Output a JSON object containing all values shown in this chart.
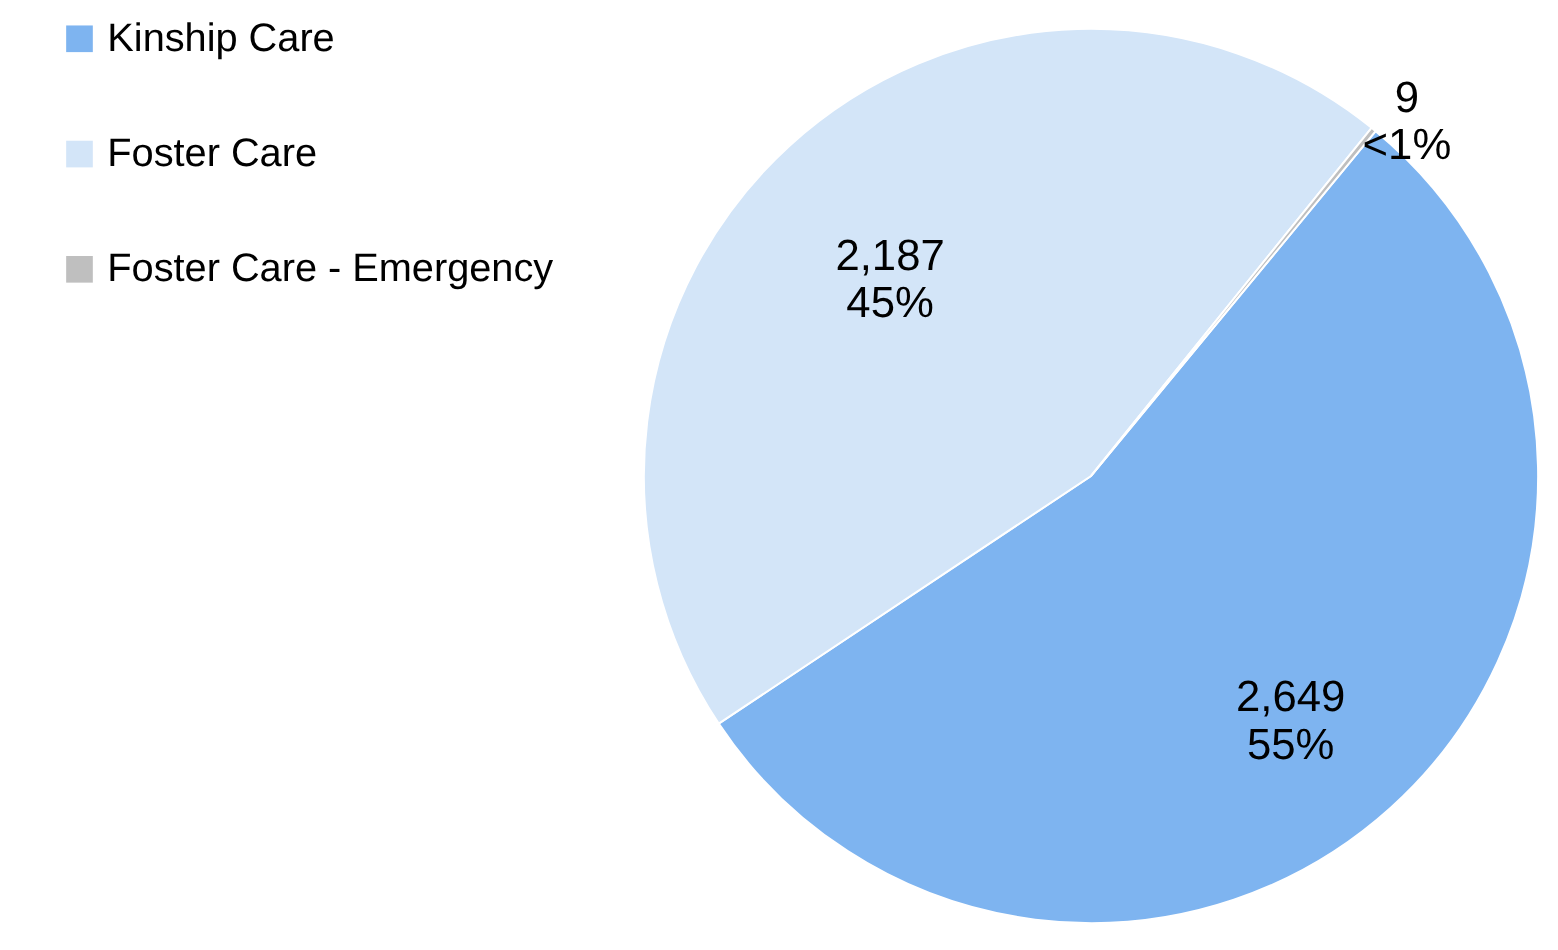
{
  "chart_data": {
    "type": "pie",
    "categories": [
      "Kinship Care",
      "Foster Care",
      "Foster Care - Emergency"
    ],
    "values": [
      2649,
      2187,
      9
    ],
    "colors": [
      "#7eb4f0",
      "#d3e5f8",
      "#bfbfbf"
    ],
    "value_labels": [
      "2,649\n55%",
      "2,187\n45%",
      "9\n<1%"
    ],
    "legend": "left"
  }
}
